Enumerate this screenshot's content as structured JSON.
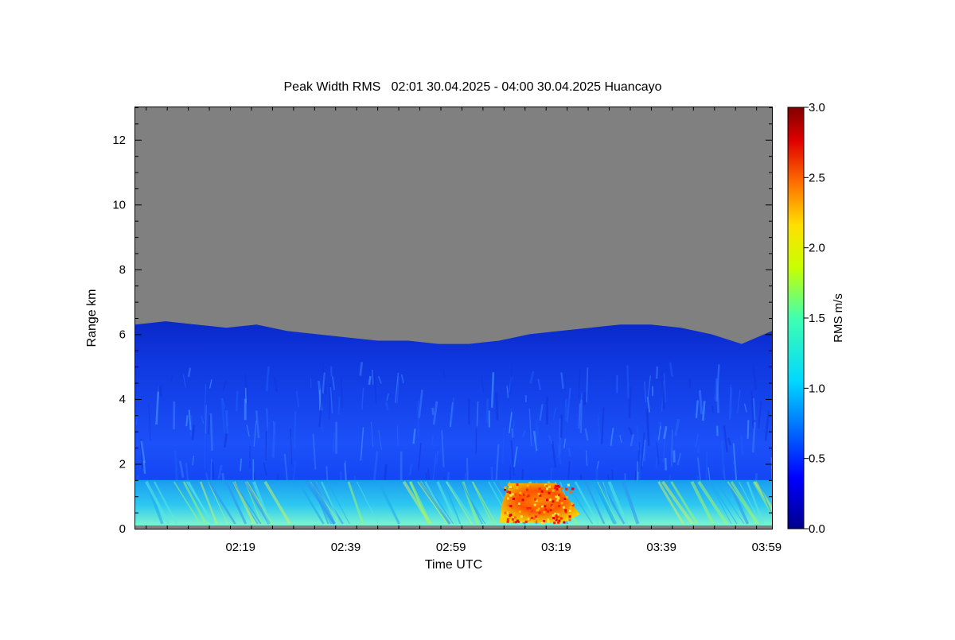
{
  "chart_data": {
    "type": "heatmap",
    "title": "Peak Width RMS   02:01 30.04.2025 - 04:00 30.04.2025 Huancayo",
    "xlabel": "Time UTC",
    "ylabel": "Range km",
    "x_ticks": [
      "02:19",
      "02:39",
      "02:59",
      "03:19",
      "03:39",
      "03:59"
    ],
    "x_tick_minutes": [
      139,
      159,
      179,
      199,
      219,
      239
    ],
    "xlim_minutes": [
      119,
      240
    ],
    "y_ticks": [
      "0",
      "2",
      "4",
      "6",
      "8",
      "10",
      "12"
    ],
    "y_tick_values": [
      0,
      2,
      4,
      6,
      8,
      10,
      12
    ],
    "ylim": [
      0,
      13
    ],
    "colorbar": {
      "label": "RMS m/s",
      "ticks": [
        "0.0",
        "0.5",
        "1.0",
        "1.5",
        "2.0",
        "2.5",
        "3.0"
      ],
      "tick_values": [
        0,
        0.5,
        1.0,
        1.5,
        2.0,
        2.5,
        3.0
      ],
      "range": [
        0,
        3.0
      ],
      "colormap": "jet"
    },
    "no_data_color": "#808080",
    "echo_top_km": [
      6.3,
      6.4,
      6.3,
      6.2,
      6.3,
      6.1,
      6.0,
      5.9,
      5.8,
      5.8,
      5.7,
      5.7,
      5.8,
      6.0,
      6.1,
      6.2,
      6.3,
      6.3,
      6.2,
      6.0,
      5.7,
      6.1
    ],
    "layers": [
      {
        "range_km": [
          1.5,
          6.2
        ],
        "typical_rms": 0.35
      },
      {
        "range_km": [
          0.1,
          1.5
        ],
        "typical_rms": 0.95
      },
      {
        "range_km": [
          0.2,
          1.4
        ],
        "time_minutes": [
          189,
          202
        ],
        "typical_rms": 2.4
      }
    ]
  }
}
